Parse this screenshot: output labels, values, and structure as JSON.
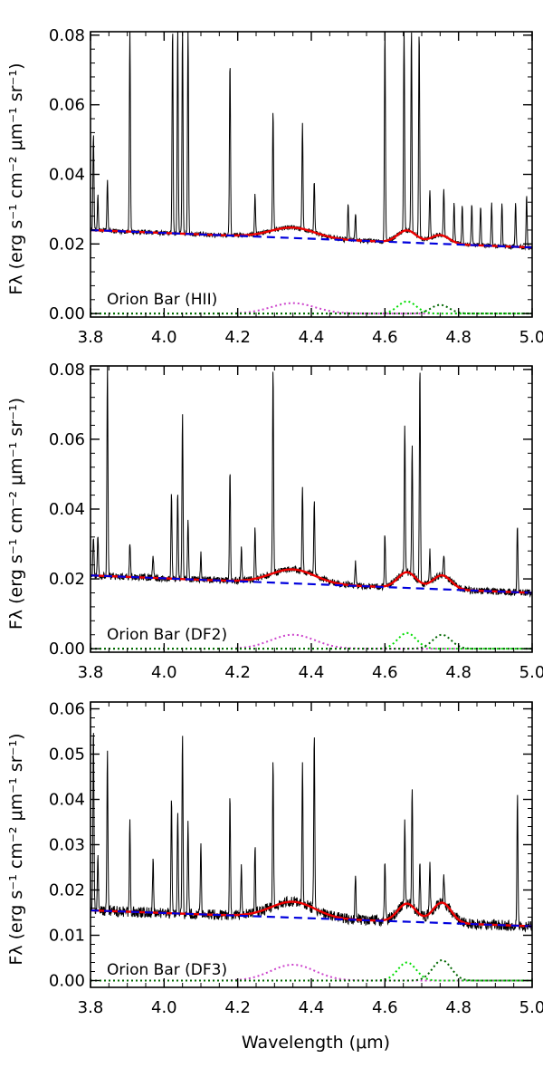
{
  "figure": {
    "xlabel": "Wavelength (μm)",
    "ylabel": "Fλ (erg s⁻¹ cm⁻² μm⁻¹ sr⁻¹)"
  },
  "chart_data": [
    {
      "type": "line",
      "panel_label": "Orion Bar (HII)",
      "xlim": [
        3.8,
        5.0
      ],
      "ylim": [
        -0.001,
        0.081
      ],
      "xticks": [
        3.8,
        4.0,
        4.2,
        4.4,
        4.6,
        4.8,
        5.0
      ],
      "yticks": [
        0.0,
        0.02,
        0.04,
        0.06,
        0.08
      ],
      "ytick_labels": [
        "0.00",
        "0.02",
        "0.04",
        "0.06",
        "0.08"
      ],
      "continuum": {
        "x": [
          3.8,
          5.0
        ],
        "y": [
          0.024,
          0.019
        ],
        "color": "#0000dd",
        "style": "dashed"
      },
      "components": [
        {
          "center": 4.35,
          "amp": 0.003,
          "sigma": 0.06,
          "color": "#cc44cc",
          "style": "dotted"
        },
        {
          "center": 4.66,
          "amp": 0.0035,
          "sigma": 0.025,
          "color": "#00dd00",
          "style": "dotted"
        },
        {
          "center": 4.75,
          "amp": 0.0025,
          "sigma": 0.025,
          "color": "#006600",
          "style": "dotted"
        }
      ],
      "emission_lines": [
        {
          "x": 3.808,
          "y": 0.052
        },
        {
          "x": 3.82,
          "y": 0.034
        },
        {
          "x": 3.846,
          "y": 0.038
        },
        {
          "x": 3.907,
          "y": 0.082
        },
        {
          "x": 4.023,
          "y": 0.082
        },
        {
          "x": 4.037,
          "y": 0.082
        },
        {
          "x": 4.05,
          "y": 0.082
        },
        {
          "x": 4.065,
          "y": 0.082
        },
        {
          "x": 4.179,
          "y": 0.073
        },
        {
          "x": 4.247,
          "y": 0.034
        },
        {
          "x": 4.296,
          "y": 0.058
        },
        {
          "x": 4.376,
          "y": 0.055
        },
        {
          "x": 4.408,
          "y": 0.038
        },
        {
          "x": 4.5,
          "y": 0.031
        },
        {
          "x": 4.52,
          "y": 0.029
        },
        {
          "x": 4.6,
          "y": 0.082
        },
        {
          "x": 4.652,
          "y": 0.082
        },
        {
          "x": 4.672,
          "y": 0.082
        },
        {
          "x": 4.693,
          "y": 0.082
        },
        {
          "x": 4.722,
          "y": 0.036
        },
        {
          "x": 4.76,
          "y": 0.036
        },
        {
          "x": 4.788,
          "y": 0.032
        },
        {
          "x": 4.81,
          "y": 0.031
        },
        {
          "x": 4.836,
          "y": 0.031
        },
        {
          "x": 4.86,
          "y": 0.031
        },
        {
          "x": 4.89,
          "y": 0.032
        },
        {
          "x": 4.918,
          "y": 0.032
        },
        {
          "x": 4.955,
          "y": 0.032
        },
        {
          "x": 4.985,
          "y": 0.034
        }
      ],
      "line_width": 0.0014,
      "noise": 0.0007
    },
    {
      "type": "line",
      "panel_label": "Orion Bar (DF2)",
      "xlim": [
        3.8,
        5.0
      ],
      "ylim": [
        -0.001,
        0.081
      ],
      "xticks": [
        3.8,
        4.0,
        4.2,
        4.4,
        4.6,
        4.8,
        5.0
      ],
      "yticks": [
        0.0,
        0.02,
        0.04,
        0.06,
        0.08
      ],
      "ytick_labels": [
        "0.00",
        "0.02",
        "0.04",
        "0.06",
        "0.08"
      ],
      "continuum": {
        "x": [
          3.8,
          5.0
        ],
        "y": [
          0.021,
          0.016
        ],
        "color": "#0000dd",
        "style": "dashed"
      },
      "components": [
        {
          "center": 4.35,
          "amp": 0.004,
          "sigma": 0.06,
          "color": "#cc44cc",
          "style": "dotted"
        },
        {
          "center": 4.66,
          "amp": 0.0045,
          "sigma": 0.025,
          "color": "#00dd00",
          "style": "dotted"
        },
        {
          "center": 4.755,
          "amp": 0.004,
          "sigma": 0.025,
          "color": "#006600",
          "style": "dotted"
        }
      ],
      "emission_lines": [
        {
          "x": 3.808,
          "y": 0.032
        },
        {
          "x": 3.82,
          "y": 0.033
        },
        {
          "x": 3.846,
          "y": 0.081
        },
        {
          "x": 3.907,
          "y": 0.03
        },
        {
          "x": 3.97,
          "y": 0.027
        },
        {
          "x": 4.02,
          "y": 0.044
        },
        {
          "x": 4.037,
          "y": 0.045
        },
        {
          "x": 4.05,
          "y": 0.068
        },
        {
          "x": 4.065,
          "y": 0.036
        },
        {
          "x": 4.1,
          "y": 0.027
        },
        {
          "x": 4.179,
          "y": 0.052
        },
        {
          "x": 4.21,
          "y": 0.029
        },
        {
          "x": 4.247,
          "y": 0.034
        },
        {
          "x": 4.296,
          "y": 0.081
        },
        {
          "x": 4.376,
          "y": 0.046
        },
        {
          "x": 4.408,
          "y": 0.043
        },
        {
          "x": 4.52,
          "y": 0.025
        },
        {
          "x": 4.6,
          "y": 0.033
        },
        {
          "x": 4.654,
          "y": 0.065
        },
        {
          "x": 4.674,
          "y": 0.058
        },
        {
          "x": 4.695,
          "y": 0.081
        },
        {
          "x": 4.722,
          "y": 0.028
        },
        {
          "x": 4.76,
          "y": 0.027
        },
        {
          "x": 4.96,
          "y": 0.036
        }
      ],
      "line_width": 0.0014,
      "noise": 0.001
    },
    {
      "type": "line",
      "panel_label": "Orion Bar (DF3)",
      "xlim": [
        3.8,
        5.0
      ],
      "ylim": [
        -0.0015,
        0.0615
      ],
      "xticks": [
        3.8,
        4.0,
        4.2,
        4.4,
        4.6,
        4.8,
        5.0
      ],
      "yticks": [
        0.0,
        0.01,
        0.02,
        0.03,
        0.04,
        0.05,
        0.06
      ],
      "ytick_labels": [
        "0.00",
        "0.01",
        "0.02",
        "0.03",
        "0.04",
        "0.05",
        "0.06"
      ],
      "continuum": {
        "x": [
          3.8,
          5.0
        ],
        "y": [
          0.0155,
          0.012
        ],
        "color": "#0000dd",
        "style": "dashed"
      },
      "components": [
        {
          "center": 4.35,
          "amp": 0.0035,
          "sigma": 0.06,
          "color": "#cc44cc",
          "style": "dotted"
        },
        {
          "center": 4.66,
          "amp": 0.004,
          "sigma": 0.025,
          "color": "#00dd00",
          "style": "dotted"
        },
        {
          "center": 4.755,
          "amp": 0.0045,
          "sigma": 0.025,
          "color": "#006600",
          "style": "dotted"
        }
      ],
      "emission_lines": [
        {
          "x": 3.808,
          "y": 0.056
        },
        {
          "x": 3.82,
          "y": 0.028
        },
        {
          "x": 3.846,
          "y": 0.05
        },
        {
          "x": 3.907,
          "y": 0.035
        },
        {
          "x": 3.97,
          "y": 0.027
        },
        {
          "x": 4.02,
          "y": 0.041
        },
        {
          "x": 4.037,
          "y": 0.037
        },
        {
          "x": 4.05,
          "y": 0.055
        },
        {
          "x": 4.065,
          "y": 0.035
        },
        {
          "x": 4.1,
          "y": 0.03
        },
        {
          "x": 4.179,
          "y": 0.041
        },
        {
          "x": 4.21,
          "y": 0.026
        },
        {
          "x": 4.247,
          "y": 0.03
        },
        {
          "x": 4.296,
          "y": 0.048
        },
        {
          "x": 4.376,
          "y": 0.047
        },
        {
          "x": 4.408,
          "y": 0.055
        },
        {
          "x": 4.52,
          "y": 0.024
        },
        {
          "x": 4.6,
          "y": 0.026
        },
        {
          "x": 4.654,
          "y": 0.036
        },
        {
          "x": 4.674,
          "y": 0.043
        },
        {
          "x": 4.695,
          "y": 0.027
        },
        {
          "x": 4.722,
          "y": 0.026
        },
        {
          "x": 4.76,
          "y": 0.024
        },
        {
          "x": 4.96,
          "y": 0.041
        }
      ],
      "line_width": 0.0014,
      "noise": 0.0012
    }
  ]
}
